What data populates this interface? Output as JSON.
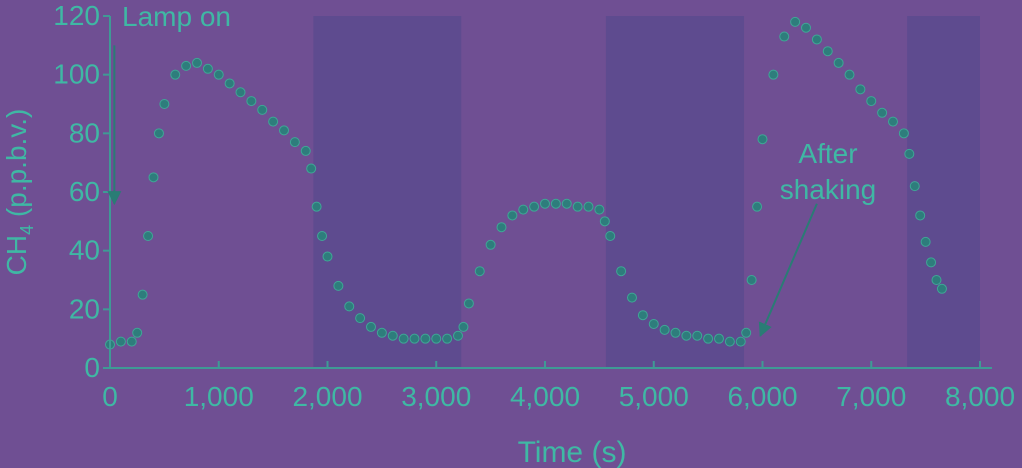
{
  "chart_data": {
    "type": "scatter",
    "title": "",
    "xlabel": "Time (s)",
    "ylabel_main": "CH",
    "ylabel_sub": "4",
    "ylabel_suffix": " (p.p.b.v.)",
    "xlim": [
      0,
      8000
    ],
    "ylim": [
      0,
      120
    ],
    "xticks": [
      0,
      1000,
      2000,
      3000,
      4000,
      5000,
      6000,
      7000,
      8000
    ],
    "xtick_labels": [
      "0",
      "1,000",
      "2,000",
      "3,000",
      "4,000",
      "5,000",
      "6,000",
      "7,000",
      "8,000"
    ],
    "yticks": [
      0,
      20,
      40,
      60,
      80,
      100,
      120
    ],
    "ytick_labels": [
      "0",
      "20",
      "40",
      "60",
      "80",
      "100",
      "120"
    ],
    "grid": false,
    "legend": "none",
    "dark_periods": [
      {
        "start": 1870,
        "end": 3230
      },
      {
        "start": 4560,
        "end": 5830
      },
      {
        "start": 7330,
        "end": 8000
      }
    ],
    "series": [
      {
        "marker": "circle",
        "points": [
          [
            0,
            8
          ],
          [
            100,
            9
          ],
          [
            200,
            9
          ],
          [
            250,
            12
          ],
          [
            300,
            25
          ],
          [
            350,
            45
          ],
          [
            400,
            65
          ],
          [
            450,
            80
          ],
          [
            500,
            90
          ],
          [
            600,
            100
          ],
          [
            700,
            103
          ],
          [
            800,
            104
          ],
          [
            900,
            102
          ],
          [
            1000,
            100
          ],
          [
            1100,
            97
          ],
          [
            1200,
            94
          ],
          [
            1300,
            91
          ],
          [
            1400,
            88
          ],
          [
            1500,
            84
          ],
          [
            1600,
            81
          ],
          [
            1700,
            77
          ],
          [
            1800,
            74
          ],
          [
            1850,
            68
          ],
          [
            1900,
            55
          ],
          [
            1950,
            45
          ],
          [
            2000,
            38
          ],
          [
            2100,
            28
          ],
          [
            2200,
            21
          ],
          [
            2300,
            17
          ],
          [
            2400,
            14
          ],
          [
            2500,
            12
          ],
          [
            2600,
            11
          ],
          [
            2700,
            10
          ],
          [
            2800,
            10
          ],
          [
            2900,
            10
          ],
          [
            3000,
            10
          ],
          [
            3100,
            10
          ],
          [
            3200,
            11
          ],
          [
            3250,
            14
          ],
          [
            3300,
            22
          ],
          [
            3400,
            33
          ],
          [
            3500,
            42
          ],
          [
            3600,
            48
          ],
          [
            3700,
            52
          ],
          [
            3800,
            54
          ],
          [
            3900,
            55
          ],
          [
            4000,
            56
          ],
          [
            4100,
            56
          ],
          [
            4200,
            56
          ],
          [
            4300,
            55
          ],
          [
            4400,
            55
          ],
          [
            4500,
            54
          ],
          [
            4550,
            50
          ],
          [
            4600,
            45
          ],
          [
            4700,
            33
          ],
          [
            4800,
            24
          ],
          [
            4900,
            18
          ],
          [
            5000,
            15
          ],
          [
            5100,
            13
          ],
          [
            5200,
            12
          ],
          [
            5300,
            11
          ],
          [
            5400,
            11
          ],
          [
            5500,
            10
          ],
          [
            5600,
            10
          ],
          [
            5700,
            9
          ],
          [
            5800,
            9
          ],
          [
            5850,
            12
          ],
          [
            5900,
            30
          ],
          [
            5950,
            55
          ],
          [
            6000,
            78
          ],
          [
            6100,
            100
          ],
          [
            6200,
            113
          ],
          [
            6300,
            118
          ],
          [
            6400,
            116
          ],
          [
            6500,
            112
          ],
          [
            6600,
            108
          ],
          [
            6700,
            104
          ],
          [
            6800,
            100
          ],
          [
            6900,
            95
          ],
          [
            7000,
            91
          ],
          [
            7100,
            87
          ],
          [
            7200,
            84
          ],
          [
            7300,
            80
          ],
          [
            7350,
            73
          ],
          [
            7400,
            62
          ],
          [
            7450,
            52
          ],
          [
            7500,
            43
          ],
          [
            7550,
            36
          ],
          [
            7600,
            30
          ],
          [
            7650,
            27
          ]
        ]
      }
    ],
    "annotations": [
      {
        "lines": [
          "Lamp on"
        ],
        "arrow_from": [
          40,
          110
        ],
        "arrow_to": [
          40,
          56
        ]
      },
      {
        "lines": [
          "After",
          "shaking"
        ],
        "arrow_from": [
          6500,
          56
        ],
        "arrow_to": [
          5980,
          11
        ]
      }
    ]
  },
  "colors": {
    "background": "#6f4f93",
    "dark_period": "#5e4b8f",
    "text": "#3fb8a4",
    "axis": "#3f9a95",
    "marker": "#2e7d7c",
    "arrow": "#2a7c75"
  }
}
